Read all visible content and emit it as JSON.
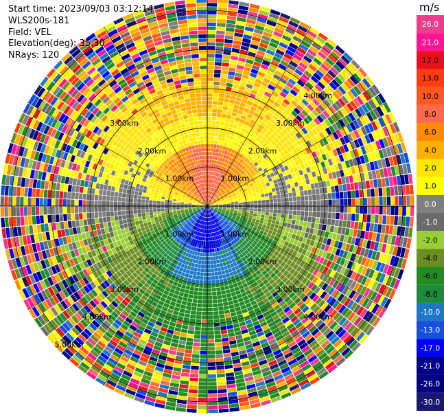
{
  "info": {
    "start_time": "Start time: 2023/09/03 03:12:14",
    "site": "WLS200s-181",
    "field": "Field: VEL",
    "elevation": "Elevation(deg): 35.30",
    "nrays": "NRays: 120"
  },
  "colorbar": {
    "unit": "m/s",
    "bands": [
      {
        "label": "26.0",
        "color": "#f03c8c"
      },
      {
        "label": "21.0",
        "color": "#ff1493"
      },
      {
        "label": "17.0",
        "color": "#e8101c"
      },
      {
        "label": "13.0",
        "color": "#ff3c10"
      },
      {
        "label": "10.0",
        "color": "#ff5a1e"
      },
      {
        "label": "8.0",
        "color": "#ff6a4e"
      },
      {
        "label": "6.0",
        "color": "#ff8c00"
      },
      {
        "label": "4.0",
        "color": "#ffb000"
      },
      {
        "label": "2.0",
        "color": "#ffe600"
      },
      {
        "label": "1.0",
        "color": "#ffff00"
      },
      {
        "label": "0.0",
        "color": "#7f7f7f"
      },
      {
        "label": "-1.0",
        "color": "#6b6b6b"
      },
      {
        "label": "-2.0",
        "color": "#9acd32"
      },
      {
        "label": "-4.0",
        "color": "#6b8e23"
      },
      {
        "label": "-6.0",
        "color": "#228b22"
      },
      {
        "label": "-8.0",
        "color": "#1e8b3c"
      },
      {
        "label": "-10.0",
        "color": "#1e78c8"
      },
      {
        "label": "-13.0",
        "color": "#1450dc"
      },
      {
        "label": "-17.0",
        "color": "#0000ff"
      },
      {
        "label": "-21.0",
        "color": "#00008b"
      },
      {
        "label": "-26.0",
        "color": "#000080"
      },
      {
        "label": "-30.0",
        "color": "#191970"
      }
    ]
  },
  "chart_data": {
    "type": "heatmap",
    "projection": "polar PPI",
    "field": "VEL",
    "units": "m/s",
    "nrays": 120,
    "range_rings_km": [
      1,
      2,
      3,
      4,
      5
    ],
    "max_range_km": 5.3,
    "ring_labels": [
      {
        "text": "1.00km",
        "ring_km": 1,
        "quadrant": "NW"
      },
      {
        "text": "1.00km",
        "ring_km": 1,
        "quadrant": "NE"
      },
      {
        "text": "1.00km",
        "ring_km": 1,
        "quadrant": "SW"
      },
      {
        "text": "1.00km",
        "ring_km": 1,
        "quadrant": "SE"
      },
      {
        "text": "2.00km",
        "ring_km": 2,
        "quadrant": "NW"
      },
      {
        "text": "2.00km",
        "ring_km": 2,
        "quadrant": "NE"
      },
      {
        "text": "2.00km",
        "ring_km": 2,
        "quadrant": "SW"
      },
      {
        "text": "2.00km",
        "ring_km": 2,
        "quadrant": "SE"
      },
      {
        "text": "3.00km",
        "ring_km": 3,
        "quadrant": "NW"
      },
      {
        "text": "3.00km",
        "ring_km": 3,
        "quadrant": "NE"
      },
      {
        "text": "3.00km",
        "ring_km": 3,
        "quadrant": "SW"
      },
      {
        "text": "3.00km",
        "ring_km": 3,
        "quadrant": "SE"
      },
      {
        "text": "4.00km",
        "ring_km": 4,
        "quadrant": "NE"
      },
      {
        "text": "4.00km",
        "ring_km": 4,
        "quadrant": "SW"
      },
      {
        "text": "4.00km",
        "ring_km": 4,
        "quadrant": "SE"
      },
      {
        "text": "5.00km",
        "ring_km": 5,
        "quadrant": "SW"
      }
    ],
    "pattern": {
      "north_sector": {
        "velocity_mps": [
          6,
          13
        ],
        "description": "positive (red/orange) near radar, yellow band around 1.5-2 km"
      },
      "south_sector": {
        "velocity_mps": [
          -17,
          -8
        ],
        "description": "negative (blue) near radar, green band"
      },
      "east_west_axis": {
        "velocity_mps": [
          -1,
          1
        ],
        "description": "near zero (gray)"
      },
      "outer_ranges": {
        "description": "noisy, all colors beyond ~3.5 km"
      }
    }
  }
}
